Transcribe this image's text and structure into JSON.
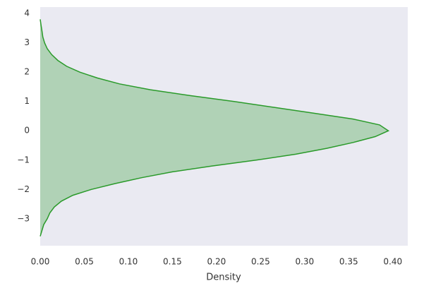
{
  "chart_data": {
    "type": "kde",
    "orientation": "horizontal",
    "xlabel": "Density",
    "color": "#2a9a2a",
    "y": [
      -3.6,
      -3.4,
      -3.2,
      -3.0,
      -2.8,
      -2.6,
      -2.4,
      -2.2,
      -2.0,
      -1.8,
      -1.6,
      -1.4,
      -1.2,
      -1.0,
      -0.8,
      -0.6,
      -0.4,
      -0.2,
      0.0,
      0.2,
      0.4,
      0.6,
      0.8,
      1.0,
      1.2,
      1.4,
      1.6,
      1.8,
      2.0,
      2.2,
      2.4,
      2.6,
      2.8,
      3.0,
      3.2,
      3.4,
      3.6,
      3.8
    ],
    "values": [
      0.0,
      0.002,
      0.004,
      0.008,
      0.011,
      0.016,
      0.024,
      0.037,
      0.058,
      0.085,
      0.115,
      0.15,
      0.195,
      0.245,
      0.29,
      0.325,
      0.355,
      0.38,
      0.395,
      0.385,
      0.355,
      0.31,
      0.265,
      0.22,
      0.17,
      0.125,
      0.09,
      0.065,
      0.045,
      0.03,
      0.02,
      0.013,
      0.008,
      0.005,
      0.003,
      0.002,
      0.001,
      0.0
    ],
    "xlim": [
      0,
      0.417
    ],
    "ylim": [
      -3.92,
      4.22
    ],
    "xticks": [
      {
        "value": 0,
        "label": "0.00"
      },
      {
        "value": 0.05,
        "label": "0.05"
      },
      {
        "value": 0.1,
        "label": "0.10"
      },
      {
        "value": 0.15,
        "label": "0.15"
      },
      {
        "value": 0.2,
        "label": "0.20"
      },
      {
        "value": 0.25,
        "label": "0.25"
      },
      {
        "value": 0.3,
        "label": "0.30"
      },
      {
        "value": 0.35,
        "label": "0.35"
      },
      {
        "value": 0.4,
        "label": "0.40"
      }
    ],
    "yticks": [
      {
        "value": -3,
        "label": "−3"
      },
      {
        "value": -2,
        "label": "−2"
      },
      {
        "value": -1,
        "label": "−1"
      },
      0,
      1,
      2,
      3,
      4
    ],
    "grid": false,
    "background": "#eaeaf2"
  }
}
